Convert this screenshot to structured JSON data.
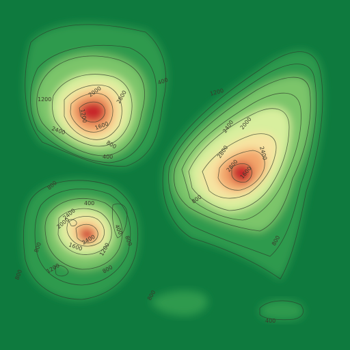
{
  "colors": {
    "sea": "#0e7a3e",
    "low": "#2f9a4e",
    "mid_low": "#7cc56a",
    "mid": "#d8ef9e",
    "high": "#f7e3a1",
    "higher": "#f3a56a",
    "peak": "#c8282a"
  },
  "labels": {
    "a1": "1200",
    "a2": "2000",
    "a3": "2800",
    "a4": "1200",
    "a5": "1600",
    "a6": "2400",
    "a7": "800",
    "a8": "400",
    "b1": "400",
    "b2": "1200",
    "b3": "2400",
    "b4": "2000",
    "b5": "2800",
    "b6": "2400",
    "b7": "2800",
    "b8": "1600",
    "b9": "800",
    "c1": "800",
    "c2": "400",
    "c3": "2400",
    "c4": "2000",
    "c5": "1600",
    "c6": "2400",
    "c7": "400",
    "c8": "800",
    "c9": "1200",
    "c10": "1200",
    "c11": "800",
    "c12": "800",
    "c13": "800",
    "d1": "800",
    "d2": "400"
  }
}
